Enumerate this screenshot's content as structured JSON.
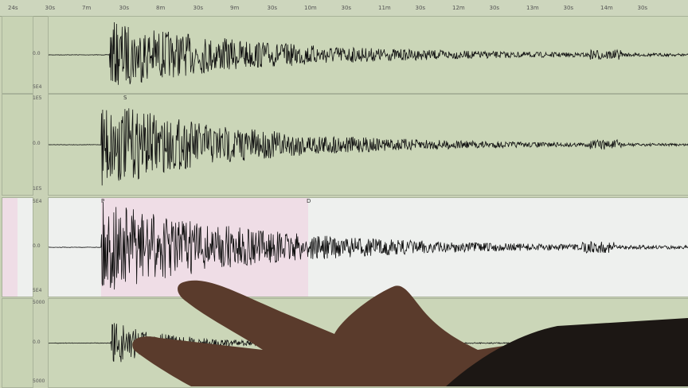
{
  "ruler": {
    "ticks": [
      "24s",
      "30s",
      "7m",
      "30s",
      "8m",
      "30s",
      "9m",
      "30s",
      "10m",
      "30s",
      "11m",
      "30s",
      "12m",
      "30s",
      "13m",
      "30s",
      "14m",
      "30s"
    ]
  },
  "channels": [
    {
      "scale_top": "",
      "scale_mid": "0.0",
      "scale_bottom": "5E4",
      "phase": "",
      "bg": "#cbd6b8"
    },
    {
      "scale_top": "1E5",
      "scale_mid": "0.0",
      "scale_bottom": "1E5",
      "phase": "S",
      "bg": "#cbd6b8"
    },
    {
      "scale_top": "5E4",
      "scale_mid": "0.0",
      "scale_bottom": "5E4",
      "phase": "P",
      "phase2": "D",
      "bg": "#eef0ee",
      "highlight": "#efdde6"
    },
    {
      "scale_top": "5000",
      "scale_mid": "0.0",
      "scale_bottom": "5000",
      "phase": "",
      "bg": "#cbd6b8"
    }
  ]
}
